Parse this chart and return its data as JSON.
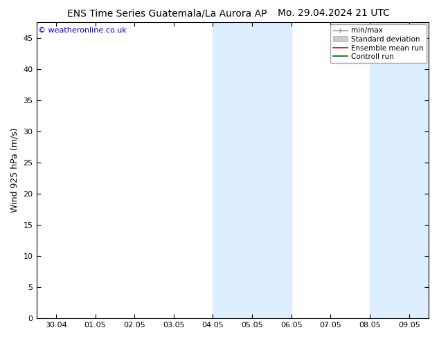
{
  "title_left": "ENS Time Series Guatemala/La Aurora AP",
  "title_right": "Mo. 29.04.2024 21 UTC",
  "ylabel": "Wind 925 hPa (m/s)",
  "watermark": "© weatheronline.co.uk",
  "ylim": [
    0,
    47.5
  ],
  "yticks": [
    0,
    5,
    10,
    15,
    20,
    25,
    30,
    35,
    40,
    45
  ],
  "xtick_labels": [
    "30.04",
    "01.05",
    "02.05",
    "03.05",
    "04.05",
    "05.05",
    "06.05",
    "07.05",
    "08.05",
    "09.05"
  ],
  "shade_bands": [
    {
      "xmin": 4.0,
      "xmax": 6.0
    },
    {
      "xmin": 8.0,
      "xmax": 9.5
    }
  ],
  "shade_color": "#ddeeff",
  "bg_color": "#ffffff",
  "plot_bg_color": "#ffffff",
  "title_fontsize": 10,
  "axis_label_fontsize": 9,
  "tick_fontsize": 8,
  "watermark_fontsize": 8,
  "legend_fontsize": 7.5
}
